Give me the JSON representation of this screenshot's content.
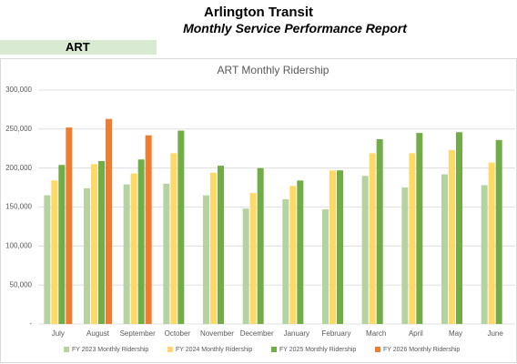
{
  "header": {
    "title": "Arlington Transit",
    "subtitle": "Monthly Service Performance Report"
  },
  "section_label": "ART",
  "chart_data": {
    "type": "bar",
    "title": "ART Monthly Ridership",
    "categories": [
      "July",
      "August",
      "September",
      "October",
      "November",
      "December",
      "January",
      "February",
      "March",
      "April",
      "May",
      "June"
    ],
    "series": [
      {
        "name": "FY 2023 Monthly Ridership",
        "color": "#b5d3a0",
        "values": [
          165000,
          174000,
          179000,
          180000,
          165000,
          148000,
          160000,
          147000,
          190000,
          175000,
          192000,
          178000
        ]
      },
      {
        "name": "FY 2024 Monthly Ridership",
        "color": "#ffd966",
        "values": [
          184000,
          205000,
          193000,
          219000,
          194000,
          168000,
          177000,
          197000,
          219000,
          219000,
          223000,
          207000
        ]
      },
      {
        "name": "FY 2025 Monthly Ridership",
        "color": "#70ad47",
        "values": [
          204000,
          209000,
          211000,
          248000,
          203000,
          200000,
          184000,
          197000,
          237000,
          245000,
          246000,
          236000
        ]
      },
      {
        "name": "FY 2026 Monthly Ridership",
        "color": "#ed7d31",
        "values": [
          252000,
          263000,
          242000,
          null,
          null,
          null,
          null,
          null,
          null,
          null,
          null,
          null
        ]
      }
    ],
    "ylim": [
      0,
      300000
    ],
    "yticks": [
      {
        "value": 0,
        "label": "-"
      },
      {
        "value": 50000,
        "label": "50,000"
      },
      {
        "value": 100000,
        "label": "100,000"
      },
      {
        "value": 150000,
        "label": "150,000"
      },
      {
        "value": 200000,
        "label": "200,000"
      },
      {
        "value": 250000,
        "label": "250,000"
      },
      {
        "value": 300000,
        "label": "300,000"
      }
    ],
    "grid": true,
    "legend": "bottom"
  }
}
